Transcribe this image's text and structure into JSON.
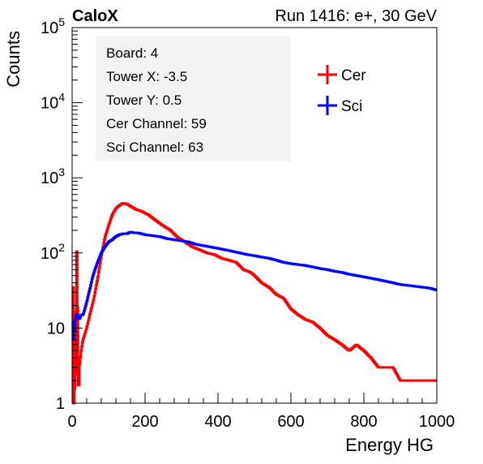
{
  "header": {
    "left": "CaloX",
    "right": "Run 1416: e+, 30 GeV"
  },
  "info_box": {
    "lines": [
      "Board: 4",
      "Tower X: -3.5",
      "Tower Y: 0.5",
      "Cer Channel: 59",
      "Sci Channel: 63"
    ]
  },
  "chart_data": {
    "type": "line",
    "title": "",
    "xlabel": "Energy HG",
    "ylabel": "Counts",
    "xlim": [
      0,
      1000
    ],
    "ylim": [
      1,
      100000
    ],
    "yscale": "log",
    "xticks": [
      0,
      200,
      400,
      600,
      800,
      1000
    ],
    "xtick_labels": [
      "0",
      "200",
      "400",
      "600",
      "800",
      "1000"
    ],
    "yticks": [
      1,
      10,
      100,
      1000,
      10000,
      100000
    ],
    "ytick_labels": [
      {
        "base": "1",
        "exp": ""
      },
      {
        "base": "10",
        "exp": ""
      },
      {
        "base": "10",
        "exp": "2"
      },
      {
        "base": "10",
        "exp": "3"
      },
      {
        "base": "10",
        "exp": "4"
      },
      {
        "base": "10",
        "exp": "5"
      }
    ],
    "grid": false,
    "legend_position": "top-right",
    "series": [
      {
        "name": "Cer",
        "color": "#ff0000",
        "points": [
          [
            0,
            6
          ],
          [
            2,
            20
          ],
          [
            4,
            60
          ],
          [
            5,
            1
          ],
          [
            10,
            3
          ],
          [
            12,
            90
          ],
          [
            14,
            120
          ],
          [
            16,
            3
          ],
          [
            18,
            1
          ],
          [
            20,
            3
          ],
          [
            25,
            5
          ],
          [
            30,
            7
          ],
          [
            40,
            10
          ],
          [
            50,
            16
          ],
          [
            60,
            25
          ],
          [
            70,
            45
          ],
          [
            80,
            90
          ],
          [
            90,
            160
          ],
          [
            100,
            230
          ],
          [
            110,
            320
          ],
          [
            120,
            390
          ],
          [
            130,
            430
          ],
          [
            140,
            460
          ],
          [
            150,
            450
          ],
          [
            160,
            420
          ],
          [
            175,
            380
          ],
          [
            190,
            360
          ],
          [
            210,
            320
          ],
          [
            230,
            270
          ],
          [
            250,
            230
          ],
          [
            270,
            200
          ],
          [
            290,
            160
          ],
          [
            310,
            140
          ],
          [
            330,
            120
          ],
          [
            350,
            110
          ],
          [
            370,
            100
          ],
          [
            390,
            95
          ],
          [
            410,
            85
          ],
          [
            430,
            80
          ],
          [
            450,
            75
          ],
          [
            470,
            60
          ],
          [
            490,
            55
          ],
          [
            500,
            50
          ],
          [
            520,
            40
          ],
          [
            540,
            35
          ],
          [
            560,
            28
          ],
          [
            580,
            25
          ],
          [
            600,
            18
          ],
          [
            620,
            15
          ],
          [
            640,
            13
          ],
          [
            660,
            12
          ],
          [
            680,
            10
          ],
          [
            700,
            8
          ],
          [
            720,
            7
          ],
          [
            740,
            6
          ],
          [
            760,
            5
          ],
          [
            780,
            6
          ],
          [
            800,
            5
          ],
          [
            820,
            4
          ],
          [
            840,
            3
          ],
          [
            860,
            3
          ],
          [
            880,
            3
          ],
          [
            900,
            2
          ],
          [
            920,
            2
          ],
          [
            940,
            2
          ],
          [
            960,
            2
          ],
          [
            980,
            2
          ],
          [
            1000,
            2
          ]
        ]
      },
      {
        "name": "Sci",
        "color": "#0000ff",
        "points": [
          [
            0,
            30
          ],
          [
            2,
            5
          ],
          [
            4,
            10
          ],
          [
            6,
            8
          ],
          [
            8,
            12
          ],
          [
            10,
            15
          ],
          [
            15,
            15
          ],
          [
            20,
            13
          ],
          [
            25,
            15
          ],
          [
            30,
            15
          ],
          [
            35,
            18
          ],
          [
            40,
            22
          ],
          [
            45,
            28
          ],
          [
            50,
            35
          ],
          [
            55,
            45
          ],
          [
            60,
            55
          ],
          [
            70,
            75
          ],
          [
            80,
            100
          ],
          [
            90,
            120
          ],
          [
            100,
            140
          ],
          [
            110,
            150
          ],
          [
            120,
            165
          ],
          [
            130,
            175
          ],
          [
            140,
            180
          ],
          [
            150,
            180
          ],
          [
            160,
            190
          ],
          [
            170,
            185
          ],
          [
            180,
            185
          ],
          [
            190,
            180
          ],
          [
            200,
            175
          ],
          [
            220,
            170
          ],
          [
            240,
            165
          ],
          [
            260,
            155
          ],
          [
            280,
            150
          ],
          [
            300,
            145
          ],
          [
            320,
            140
          ],
          [
            340,
            130
          ],
          [
            360,
            125
          ],
          [
            380,
            120
          ],
          [
            400,
            115
          ],
          [
            420,
            110
          ],
          [
            440,
            105
          ],
          [
            460,
            100
          ],
          [
            480,
            95
          ],
          [
            500,
            92
          ],
          [
            520,
            88
          ],
          [
            540,
            85
          ],
          [
            560,
            80
          ],
          [
            580,
            75
          ],
          [
            600,
            72
          ],
          [
            620,
            70
          ],
          [
            640,
            68
          ],
          [
            660,
            65
          ],
          [
            680,
            62
          ],
          [
            700,
            60
          ],
          [
            720,
            57
          ],
          [
            740,
            55
          ],
          [
            760,
            52
          ],
          [
            780,
            50
          ],
          [
            800,
            48
          ],
          [
            820,
            46
          ],
          [
            840,
            44
          ],
          [
            860,
            42
          ],
          [
            880,
            40
          ],
          [
            900,
            38
          ],
          [
            920,
            37
          ],
          [
            940,
            36
          ],
          [
            960,
            35
          ],
          [
            980,
            34
          ],
          [
            1000,
            32
          ]
        ]
      }
    ]
  }
}
